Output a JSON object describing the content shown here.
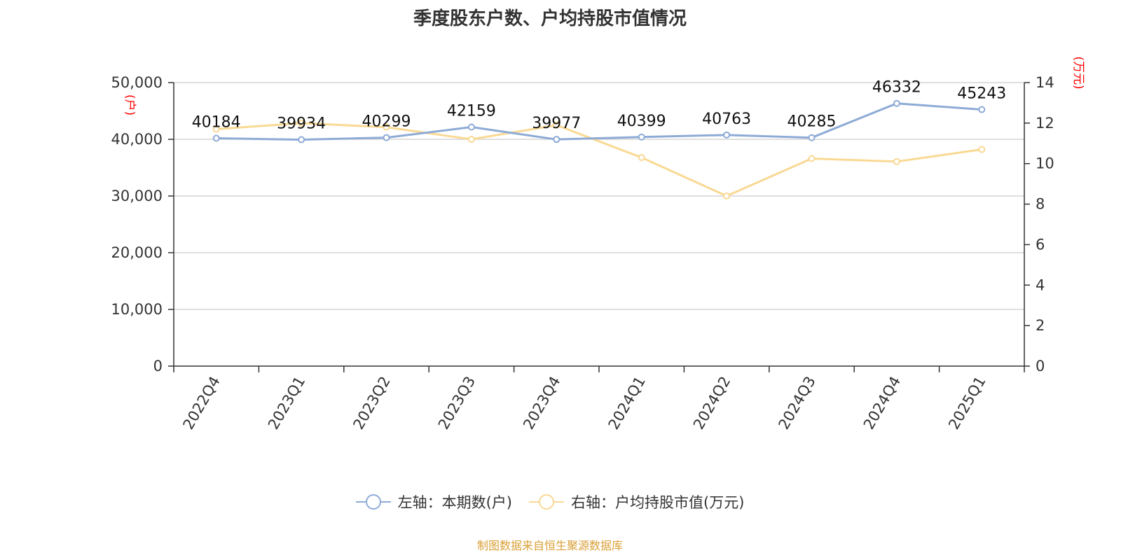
{
  "chart_data": {
    "type": "line",
    "title": "季度股东户数、户均持股市值情况",
    "categories": [
      "2022Q4",
      "2023Q1",
      "2023Q2",
      "2023Q3",
      "2023Q4",
      "2024Q1",
      "2024Q2",
      "2024Q3",
      "2024Q4",
      "2025Q1"
    ],
    "series": [
      {
        "name": "左轴：本期数(户)",
        "axis": "left",
        "color": "#8eabd6",
        "values": [
          40184,
          39934,
          40299,
          42159,
          39977,
          40399,
          40763,
          40285,
          46332,
          45243
        ],
        "data_labels": [
          "40184",
          "39934",
          "40299",
          "42159",
          "39977",
          "40399",
          "40763",
          "40285",
          "46332",
          "45243"
        ]
      },
      {
        "name": "右轴：户均持股市值(万元)",
        "axis": "right",
        "color": "#f9d994",
        "values": [
          11.7,
          12.0,
          11.8,
          11.2,
          11.9,
          10.3,
          8.4,
          10.25,
          10.1,
          10.7
        ]
      }
    ],
    "y_left": {
      "label": "(户)",
      "range": [
        0,
        50000
      ],
      "ticks": [
        0,
        10000,
        20000,
        30000,
        40000,
        50000
      ],
      "tick_labels": [
        "0",
        "10,000",
        "20,000",
        "30,000",
        "40,000",
        "50,000"
      ]
    },
    "y_right": {
      "label": "(万元)",
      "range": [
        0,
        14
      ],
      "ticks": [
        0,
        2,
        4,
        6,
        8,
        10,
        12,
        14
      ],
      "tick_labels": [
        "0",
        "2",
        "4",
        "6",
        "8",
        "10",
        "12",
        "14"
      ]
    },
    "grid": true,
    "legend_position": "bottom",
    "axis_label_color": "#ff0000",
    "source": "制图数据来自恒生聚源数据库",
    "source_color": "#d9a038"
  }
}
